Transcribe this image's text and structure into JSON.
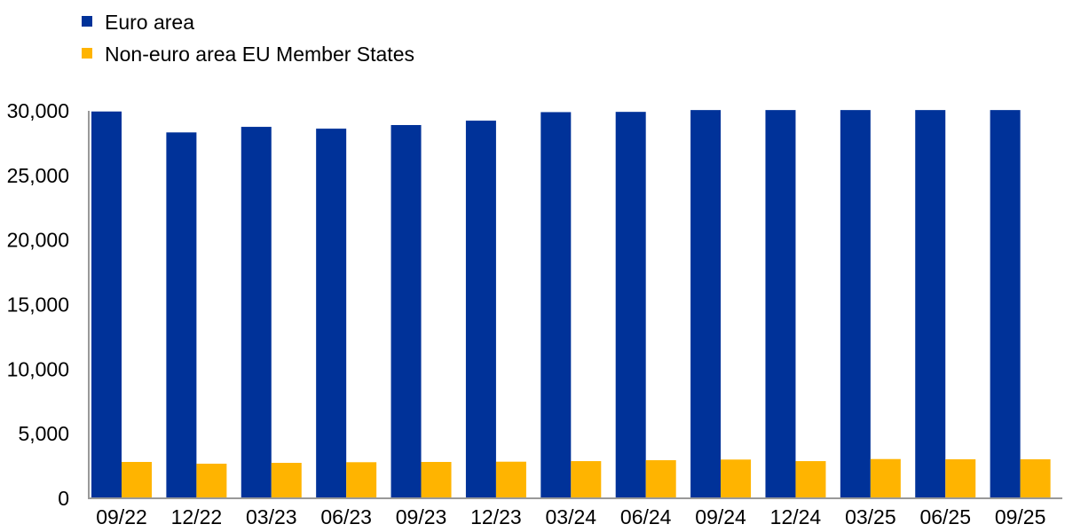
{
  "chart_data": {
    "type": "bar",
    "title": "",
    "xlabel": "",
    "ylabel": "",
    "ylim": [
      0,
      30000
    ],
    "yticks": [
      0,
      5000,
      10000,
      15000,
      20000,
      25000,
      30000
    ],
    "ytick_labels": [
      "0",
      "5,000",
      "10,000",
      "15,000",
      "20,000",
      "25,000",
      "30,000"
    ],
    "grid": false,
    "legend_position": "top-left",
    "categories": [
      "09/22",
      "12/22",
      "03/23",
      "06/23",
      "09/23",
      "12/23",
      "03/24",
      "06/24",
      "09/24",
      "12/24",
      "03/25",
      "06/25",
      "09/25"
    ],
    "series": [
      {
        "name": "Euro area",
        "color": "#003299",
        "values": [
          29950,
          28330,
          28760,
          28620,
          28900,
          29240,
          29900,
          29920,
          30060,
          30060,
          30060,
          30060,
          30060
        ]
      },
      {
        "name": "Non-euro area EU Member States",
        "color": "#FFB400",
        "values": [
          2815,
          2680,
          2745,
          2795,
          2815,
          2835,
          2880,
          2950,
          3000,
          2880,
          3040,
          3020,
          3020
        ]
      }
    ]
  }
}
